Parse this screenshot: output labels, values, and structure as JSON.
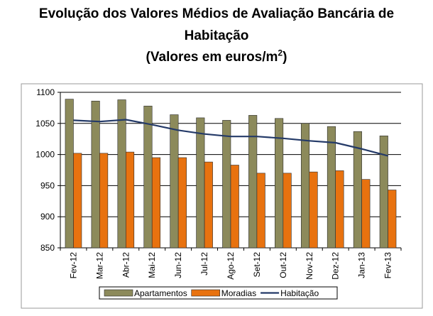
{
  "chart_data": {
    "type": "bar",
    "title_line1": "Evolução dos Valores Médios de Avaliação Bancária de",
    "title_line2": "Habitação",
    "subtitle_text": "(Valores em euros/m",
    "subtitle_sup": "2",
    "subtitle_close": ")",
    "categories": [
      "Fev-12",
      "Mar-12",
      "Abr-12",
      "Mai-12",
      "Jun-12",
      "Jul-12",
      "Ago-12",
      "Set-12",
      "Out-12",
      "Nov-12",
      "Dez-12",
      "Jan-13",
      "Fev-13"
    ],
    "series": [
      {
        "name": "Apartamentos",
        "kind": "bar",
        "color": "#8c8a5b",
        "values": [
          1089,
          1086,
          1088,
          1078,
          1064,
          1059,
          1055,
          1063,
          1058,
          1050,
          1045,
          1037,
          1030
        ]
      },
      {
        "name": "Moradias",
        "kind": "bar",
        "color": "#e8720f",
        "values": [
          1002,
          1002,
          1004,
          995,
          995,
          988,
          983,
          970,
          970,
          972,
          974,
          960,
          943
        ]
      },
      {
        "name": "Habitação",
        "kind": "line",
        "color": "#243a68",
        "values": [
          1055,
          1053,
          1056,
          1048,
          1039,
          1033,
          1029,
          1029,
          1026,
          1022,
          1019,
          1009,
          998
        ]
      }
    ],
    "yticks": [
      850,
      900,
      950,
      1000,
      1050,
      1100
    ],
    "ylim": [
      850,
      1100
    ],
    "grid": true,
    "legend_position": "bottom"
  }
}
